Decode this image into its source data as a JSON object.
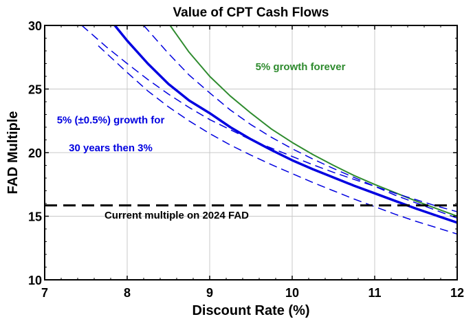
{
  "chart_data": {
    "type": "line",
    "title": "Value of CPT Cash Flows",
    "xlabel": "Discount Rate (%)",
    "ylabel": "FAD Multiple",
    "xlim": [
      7,
      12
    ],
    "ylim": [
      10,
      30
    ],
    "xticks": [
      "7",
      "8",
      "9",
      "10",
      "11",
      "12"
    ],
    "yticks": [
      "10",
      "15",
      "20",
      "25",
      "30"
    ],
    "grid": true,
    "series": [
      {
        "color": "#2e8b2e",
        "style": "solid",
        "x": [
          8.52,
          8.75,
          9.0,
          9.25,
          9.5,
          9.75,
          10.0,
          10.25,
          10.5,
          10.75,
          11.0,
          11.25,
          11.5,
          11.75,
          12.0
        ],
        "y": [
          30.0,
          27.9,
          26.0,
          24.45,
          23.1,
          21.85,
          20.8,
          19.85,
          19.0,
          18.2,
          17.5,
          16.85,
          16.2,
          15.6,
          15.0
        ]
      },
      {
        "color": "#0000e0",
        "style": "solid-thick",
        "x": [
          7.85,
          8.0,
          8.25,
          8.5,
          8.75,
          9.0,
          9.25,
          9.5,
          9.75,
          10.0,
          10.25,
          10.5,
          10.75,
          11.0,
          11.25,
          11.5,
          11.75,
          12.0
        ],
        "y": [
          30.0,
          28.8,
          27.0,
          25.4,
          24.1,
          23.1,
          22.0,
          21.05,
          20.2,
          19.4,
          18.7,
          18.05,
          17.4,
          16.8,
          16.2,
          15.6,
          15.05,
          14.5
        ]
      },
      {
        "color": "#0000e0",
        "style": "dashed",
        "x": [
          7.45,
          7.75,
          8.0,
          8.25,
          8.5,
          8.75,
          9.0,
          9.25,
          9.5,
          9.75,
          10.0,
          10.25,
          10.5,
          10.75,
          11.0,
          11.25,
          11.5,
          11.75,
          12.0
        ],
        "y": [
          30.0,
          28.3,
          27.0,
          25.75,
          24.6,
          23.55,
          22.6,
          21.8,
          21.0,
          20.35,
          19.7,
          19.05,
          18.45,
          17.9,
          17.35,
          16.8,
          16.3,
          15.8,
          15.35
        ]
      },
      {
        "color": "#0000e0",
        "style": "dashed",
        "x": [
          8.2,
          8.5,
          8.75,
          9.0,
          9.25,
          9.5,
          9.75,
          10.0,
          10.25,
          10.5,
          10.75,
          11.0,
          11.25,
          11.5,
          11.75,
          12.0
        ],
        "y": [
          30.0,
          27.8,
          26.1,
          24.7,
          23.35,
          22.2,
          21.2,
          20.3,
          19.5,
          18.75,
          18.05,
          17.35,
          16.65,
          16.05,
          15.45,
          14.85
        ]
      },
      {
        "color": "#0000e0",
        "style": "dashed",
        "x": [
          7.65,
          8.0,
          8.25,
          8.5,
          8.75,
          9.0,
          9.25,
          9.5,
          9.75,
          10.0,
          10.25,
          10.5,
          10.75,
          11.0,
          11.25,
          11.5,
          11.75,
          12.0
        ],
        "y": [
          28.4,
          26.3,
          24.85,
          23.6,
          22.5,
          21.5,
          20.6,
          19.8,
          19.05,
          18.35,
          17.65,
          17.0,
          16.35,
          15.75,
          15.15,
          14.6,
          14.1,
          13.6
        ]
      },
      {
        "color": "#000000",
        "style": "dashed-thick",
        "x": [
          7,
          12
        ],
        "y": [
          15.85,
          15.85
        ]
      }
    ],
    "annotations": [
      {
        "text": "5% growth forever",
        "color": "#2e8b2e",
        "x": 10.1,
        "y": 26.5
      },
      {
        "text": "5% (±0.5%) growth for",
        "color": "#0000e0",
        "x": 7.8,
        "y": 22.3
      },
      {
        "text": "30 years then 3%",
        "color": "#0000e0",
        "x": 7.8,
        "y": 20.1
      },
      {
        "text": "Current multiple on 2024 FAD",
        "color": "#000000",
        "x": 8.6,
        "y": 14.8
      }
    ]
  }
}
